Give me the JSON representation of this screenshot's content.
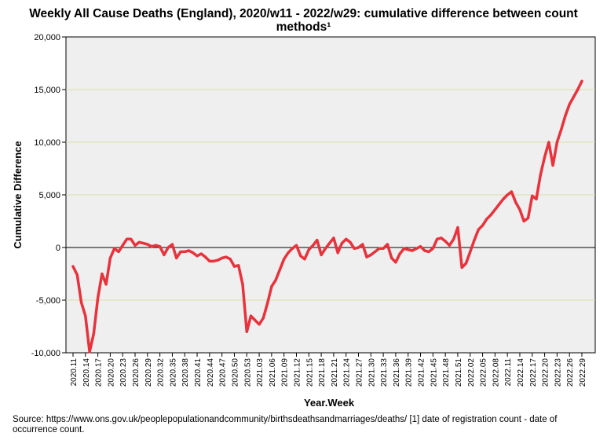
{
  "chart_data": {
    "type": "line",
    "title_line1": "Weekly All Cause Deaths (England), 2020/w11 - 2022/w29: cumulative difference between count",
    "title_line2": "methods¹",
    "xlabel": "Year.Week",
    "ylabel": "Cumulative Difference",
    "ylim": [
      -10000,
      20000
    ],
    "yticks": [
      -10000,
      -5000,
      0,
      5000,
      10000,
      15000,
      20000
    ],
    "ytick_labels": [
      "-10,000",
      "-5,000",
      "0",
      "5,000",
      "10,000",
      "15,000",
      "20,000"
    ],
    "grid": true,
    "reference_line": 0,
    "xtick_labels": [
      "2020.11",
      "2020.14",
      "2020.17",
      "2020.20",
      "2020.23",
      "2020.26",
      "2020.29",
      "2020.32",
      "2020.35",
      "2020.38",
      "2020.41",
      "2020.44",
      "2020.47",
      "2020.50",
      "2020.53",
      "2021.03",
      "2021.06",
      "2021.09",
      "2021.12",
      "2021.15",
      "2021.18",
      "2021.21",
      "2021.24",
      "2021.27",
      "2021.30",
      "2021.33",
      "2021.36",
      "2021.39",
      "2021.42",
      "2021.45",
      "2021.48",
      "2021.51",
      "2022.02",
      "2022.05",
      "2022.08",
      "2022.11",
      "2022.14",
      "2022.17",
      "2022.20",
      "2022.23",
      "2022.26",
      "2022.29"
    ],
    "series": [
      {
        "name": "Cumulative Difference",
        "color": "#e8323c",
        "values": [
          -1800,
          -2600,
          -5200,
          -6500,
          -9900,
          -8200,
          -4800,
          -2500,
          -3500,
          -1000,
          -100,
          -400,
          200,
          800,
          800,
          200,
          500,
          400,
          300,
          100,
          200,
          100,
          -700,
          0,
          300,
          -1000,
          -400,
          -400,
          -300,
          -500,
          -800,
          -600,
          -900,
          -1300,
          -1300,
          -1200,
          -1000,
          -900,
          -1100,
          -1800,
          -1700,
          -3500,
          -8000,
          -6500,
          -6900,
          -7300,
          -6700,
          -5300,
          -3700,
          -3100,
          -2100,
          -1100,
          -500,
          -100,
          200,
          -800,
          -1100,
          -200,
          200,
          700,
          -700,
          -100,
          400,
          900,
          -500,
          400,
          800,
          500,
          -100,
          0,
          300,
          -900,
          -700,
          -400,
          -100,
          -100,
          300,
          -1000,
          -1400,
          -600,
          -100,
          -200,
          -300,
          -100,
          100,
          -300,
          -400,
          -100,
          800,
          900,
          600,
          200,
          800,
          1900,
          -1900,
          -1500,
          -400,
          700,
          1700,
          2100,
          2700,
          3100,
          3600,
          4100,
          4600,
          5000,
          5300,
          4300,
          3600,
          2500,
          2800,
          4900,
          4600,
          6900,
          8600,
          10000,
          7800,
          10000,
          11200,
          12500,
          13600,
          14300,
          15000,
          15800
        ]
      }
    ]
  },
  "source_note": "Source: https://www.ons.gov.uk/peoplepopulationandcommunity/birthsdeathsandmarriages/deaths/  [1] date of registration count - date of occurrence count."
}
